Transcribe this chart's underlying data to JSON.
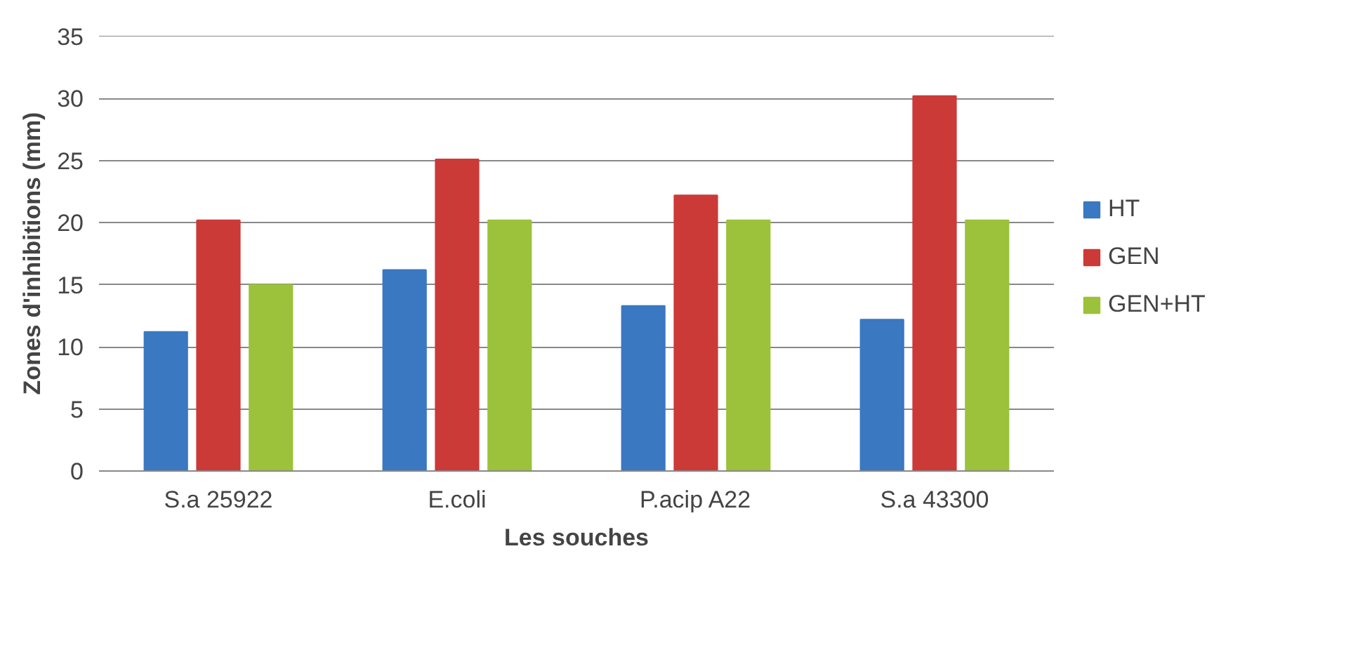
{
  "chart_data": {
    "type": "bar",
    "xlabel": "Les souches",
    "ylabel": "Zones d'inhibitions (mm)",
    "categories": [
      "S.a 25922",
      "E.coli",
      "P.acip A22",
      "S.a 43300"
    ],
    "series": [
      {
        "name": "HT",
        "color": "#3a78c2",
        "values": [
          11.2,
          16.2,
          13.3,
          12.2
        ]
      },
      {
        "name": "GEN",
        "color": "#cc3a38",
        "values": [
          20.2,
          25.1,
          22.2,
          30.2
        ]
      },
      {
        "name": "GEN+HT",
        "color": "#9bc23a",
        "values": [
          15.0,
          20.2,
          20.2,
          20.2
        ]
      }
    ],
    "ylim": [
      0,
      35
    ],
    "yticks": [
      0,
      5,
      10,
      15,
      20,
      25,
      30,
      35
    ],
    "grid": "y",
    "legend": "right"
  }
}
